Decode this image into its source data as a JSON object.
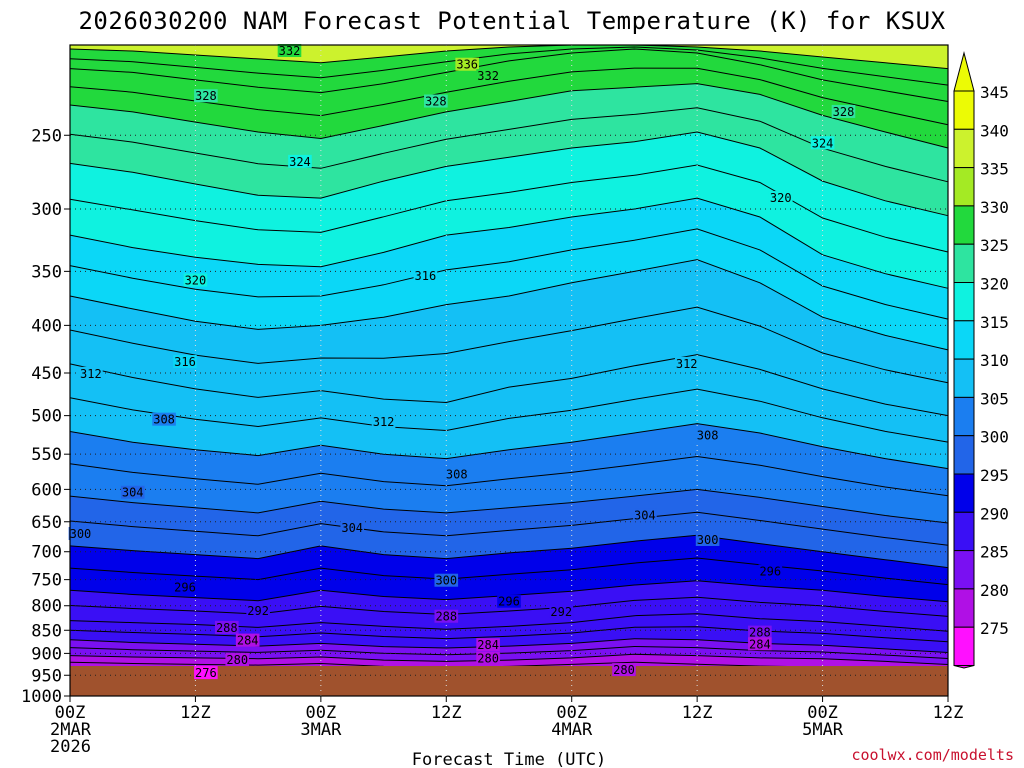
{
  "chart_data": {
    "type": "heatmap",
    "title": "2026030200 NAM Forecast Potential Temperature (K) for KSUX",
    "xlabel": "Forecast Time (UTC)",
    "ylabel": "",
    "credit": "coolwx.com/modelts",
    "x_ticks": [
      {
        "hours": 0,
        "lines": [
          "00Z",
          "2MAR",
          "2026"
        ]
      },
      {
        "hours": 12,
        "lines": [
          "12Z"
        ]
      },
      {
        "hours": 24,
        "lines": [
          "00Z",
          "3MAR"
        ]
      },
      {
        "hours": 36,
        "lines": [
          "12Z"
        ]
      },
      {
        "hours": 48,
        "lines": [
          "00Z",
          "4MAR"
        ]
      },
      {
        "hours": 60,
        "lines": [
          "12Z"
        ]
      },
      {
        "hours": 72,
        "lines": [
          "00Z",
          "5MAR"
        ]
      },
      {
        "hours": 84,
        "lines": [
          "12Z"
        ]
      }
    ],
    "x_range_hours": [
      0,
      84
    ],
    "y_ticks_hpa": [
      250,
      300,
      350,
      400,
      450,
      500,
      550,
      600,
      650,
      700,
      750,
      800,
      850,
      900,
      950,
      1000
    ],
    "y_range_hpa": [
      200,
      1000
    ],
    "y_scale": "log",
    "surface_pressure_hpa": 975,
    "grid": true,
    "colorbar": {
      "label_values": [
        345,
        340,
        335,
        330,
        325,
        320,
        315,
        310,
        305,
        300,
        295,
        290,
        285,
        280,
        275
      ],
      "colors": [
        "#ecfb05",
        "#ccf22d",
        "#a4ea24",
        "#22d93d",
        "#2ee4a0",
        "#0ff2e0",
        "#0bd7f7",
        "#14c0f5",
        "#1b7ef0",
        "#2265e8",
        "#0000ea",
        "#3a0ff5",
        "#7a10f2",
        "#b010e5",
        "#ff10ff"
      ],
      "colors_order": "top-to-bottom",
      "extend": "both"
    },
    "x_samples_hours": [
      0,
      6,
      12,
      18,
      24,
      30,
      36,
      42,
      48,
      54,
      60,
      66,
      72,
      78,
      84
    ],
    "isentropes": [
      {
        "theta": 276,
        "p": [
          956,
          962,
          965,
          966,
          965,
          968,
          969,
          969,
          968,
          966,
          964,
          966,
          968,
          972,
          975
        ]
      },
      {
        "theta": 280,
        "p": [
          935,
          938,
          940,
          941,
          938,
          944,
          946,
          944,
          940,
          938,
          944,
          948,
          950,
          956,
          962
        ]
      },
      {
        "theta": 284,
        "p": [
          905,
          908,
          910,
          912,
          908,
          915,
          918,
          915,
          910,
          902,
          905,
          910,
          912,
          918,
          925
        ]
      },
      {
        "theta": 288,
        "p": [
          870,
          876,
          880,
          884,
          878,
          885,
          888,
          884,
          878,
          868,
          870,
          878,
          882,
          890,
          898
        ]
      },
      {
        "theta": 292,
        "p": [
          830,
          834,
          838,
          844,
          834,
          842,
          848,
          842,
          834,
          820,
          816,
          826,
          832,
          842,
          852
        ]
      },
      {
        "theta": 296,
        "p": [
          770,
          778,
          784,
          790,
          770,
          782,
          788,
          780,
          772,
          760,
          752,
          762,
          770,
          782,
          792
        ]
      },
      {
        "theta": 300,
        "p": [
          690,
          698,
          705,
          712,
          690,
          705,
          712,
          702,
          694,
          682,
          672,
          686,
          700,
          714,
          728
        ]
      },
      {
        "theta": 304,
        "p": [
          610,
          620,
          628,
          636,
          618,
          630,
          636,
          628,
          620,
          610,
          600,
          612,
          626,
          640,
          652
        ]
      },
      {
        "theta": 308,
        "p": [
          520,
          534,
          544,
          552,
          538,
          550,
          556,
          544,
          534,
          522,
          510,
          522,
          540,
          556,
          570
        ]
      },
      {
        "theta": 312,
        "p": [
          440,
          455,
          468,
          478,
          470,
          480,
          484,
          466,
          456,
          442,
          430,
          446,
          468,
          486,
          500
        ]
      },
      {
        "theta": 316,
        "p": [
          372,
          384,
          396,
          404,
          400,
          392,
          380,
          372,
          360,
          350,
          340,
          360,
          392,
          410,
          425
        ]
      },
      {
        "theta": 320,
        "p": [
          320,
          330,
          338,
          344,
          346,
          334,
          320,
          314,
          306,
          300,
          292,
          306,
          336,
          352,
          365
        ]
      },
      {
        "theta": 324,
        "p": [
          268,
          274,
          282,
          290,
          292,
          280,
          270,
          264,
          258,
          254,
          248,
          258,
          280,
          294,
          305
        ]
      },
      {
        "theta": 328,
        "p": [
          232,
          236,
          242,
          248,
          252,
          244,
          236,
          230,
          224,
          222,
          220,
          226,
          238,
          248,
          258
        ]
      },
      {
        "theta": 332,
        "p": [
          212,
          214,
          218,
          222,
          225,
          220,
          214,
          208,
          204,
          202,
          204,
          210,
          218,
          224,
          230
        ]
      },
      {
        "theta": 336,
        "p": [
          202,
          203,
          205,
          207,
          209,
          206,
          203,
          201,
          200,
          200,
          201,
          203,
          206,
          209,
          212
        ]
      }
    ],
    "contour_labels": [
      {
        "theta": 332,
        "hours": 21,
        "p": 203
      },
      {
        "theta": 336,
        "hours": 38,
        "p": 210
      },
      {
        "theta": 332,
        "hours": 40,
        "p": 216
      },
      {
        "theta": 328,
        "hours": 13,
        "p": 227
      },
      {
        "theta": 328,
        "hours": 35,
        "p": 230
      },
      {
        "theta": 328,
        "hours": 74,
        "p": 236
      },
      {
        "theta": 324,
        "hours": 22,
        "p": 267
      },
      {
        "theta": 324,
        "hours": 72,
        "p": 255
      },
      {
        "theta": 320,
        "hours": 68,
        "p": 292
      },
      {
        "theta": 320,
        "hours": 12,
        "p": 358
      },
      {
        "theta": 316,
        "hours": 34,
        "p": 354
      },
      {
        "theta": 316,
        "hours": 11,
        "p": 438
      },
      {
        "theta": 312,
        "hours": 2,
        "p": 451
      },
      {
        "theta": 312,
        "hours": 59,
        "p": 440
      },
      {
        "theta": 312,
        "hours": 30,
        "p": 508
      },
      {
        "theta": 308,
        "hours": 9,
        "p": 505
      },
      {
        "theta": 308,
        "hours": 61,
        "p": 525
      },
      {
        "theta": 308,
        "hours": 37,
        "p": 578
      },
      {
        "theta": 304,
        "hours": 6,
        "p": 605
      },
      {
        "theta": 304,
        "hours": 27,
        "p": 660
      },
      {
        "theta": 304,
        "hours": 55,
        "p": 640
      },
      {
        "theta": 300,
        "hours": 1,
        "p": 670
      },
      {
        "theta": 300,
        "hours": 61,
        "p": 680
      },
      {
        "theta": 296,
        "hours": 67,
        "p": 735
      },
      {
        "theta": 296,
        "hours": 11,
        "p": 765
      },
      {
        "theta": 300,
        "hours": 36,
        "p": 752
      },
      {
        "theta": 296,
        "hours": 42,
        "p": 792
      },
      {
        "theta": 292,
        "hours": 18,
        "p": 810
      },
      {
        "theta": 292,
        "hours": 47,
        "p": 812
      },
      {
        "theta": 288,
        "hours": 15,
        "p": 845
      },
      {
        "theta": 288,
        "hours": 36,
        "p": 822
      },
      {
        "theta": 288,
        "hours": 66,
        "p": 855
      },
      {
        "theta": 284,
        "hours": 17,
        "p": 872
      },
      {
        "theta": 284,
        "hours": 40,
        "p": 882
      },
      {
        "theta": 284,
        "hours": 66,
        "p": 880
      },
      {
        "theta": 280,
        "hours": 16,
        "p": 915
      },
      {
        "theta": 280,
        "hours": 40,
        "p": 912
      },
      {
        "theta": 280,
        "hours": 53,
        "p": 938
      },
      {
        "theta": 276,
        "hours": 13,
        "p": 945
      }
    ]
  }
}
